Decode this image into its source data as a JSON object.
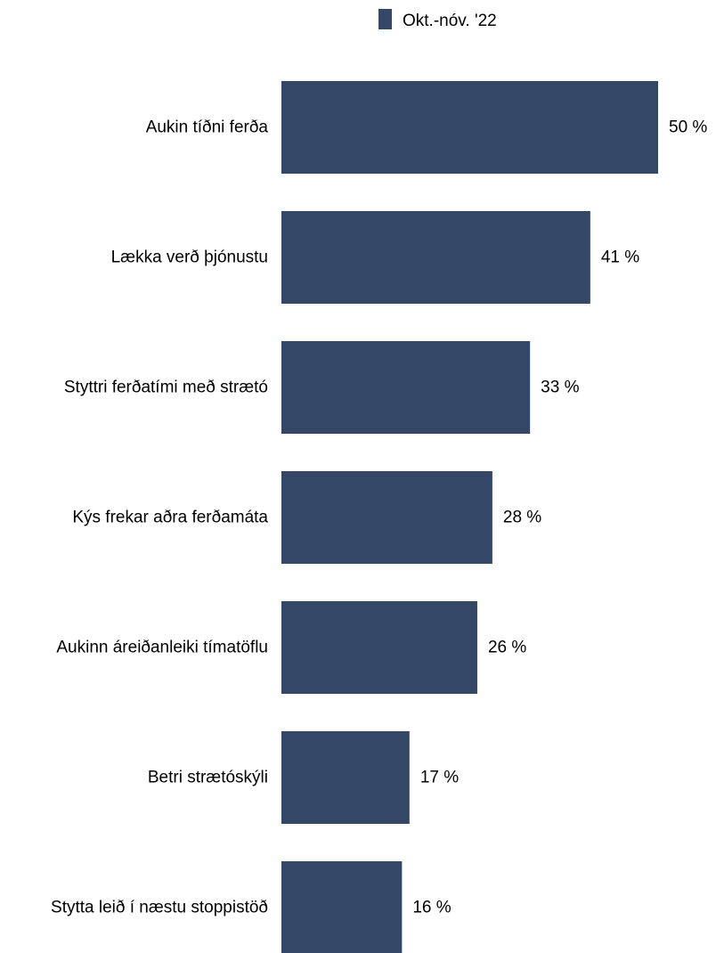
{
  "chart_data": {
    "type": "bar",
    "orientation": "horizontal",
    "categories": [
      "Aukin tíðni ferða",
      "Lækka verð þjónustu",
      "Styttri ferðatími með strætó",
      "Kýs frekar aðra ferðamáta",
      "Aukinn áreiðanleiki tímatöflu",
      "Betri strætóskýli",
      "Stytta leið í næstu stoppistöð"
    ],
    "series": [
      {
        "name": "Okt.-nóv. '22",
        "values": [
          50,
          41,
          33,
          28,
          26,
          17,
          16
        ],
        "color": "#344767"
      }
    ],
    "value_labels": [
      "50 %",
      "41 %",
      "33 %",
      "28 %",
      "26 %",
      "17 %",
      "16 %"
    ],
    "xlim": [
      0,
      50
    ],
    "grid": false,
    "legend_position": "top-center"
  }
}
